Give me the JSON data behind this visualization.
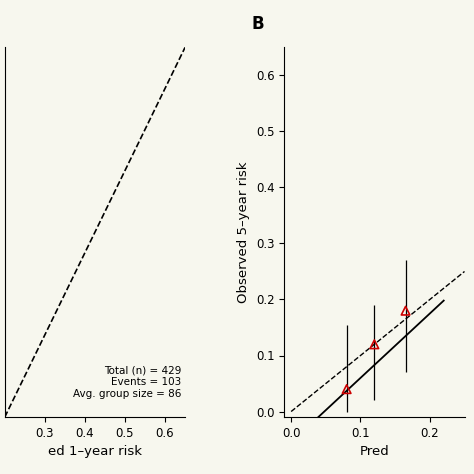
{
  "panel_A": {
    "xlim": [
      0.2,
      0.65
    ],
    "ylim": [
      0.2,
      0.65
    ],
    "xticks": [
      0.3,
      0.4,
      0.5,
      0.6
    ],
    "xlabel": "ed 1–year risk",
    "total_n": 429,
    "events": 103,
    "avg_group_size": 86
  },
  "panel_B": {
    "label": "B",
    "xlim": [
      -0.01,
      0.25
    ],
    "ylim": [
      -0.01,
      0.65
    ],
    "xticks": [
      0.0,
      0.1,
      0.2
    ],
    "yticks": [
      0.0,
      0.1,
      0.2,
      0.3,
      0.4,
      0.5,
      0.6
    ],
    "xlabel": "Pred",
    "ylabel": "Observed 5–year risk",
    "points_x": [
      0.08,
      0.12,
      0.165
    ],
    "points_y": [
      0.04,
      0.12,
      0.18
    ],
    "error_low": [
      0.0,
      0.02,
      0.07
    ],
    "error_high": [
      0.155,
      0.19,
      0.27
    ],
    "fit_slope": 1.15,
    "fit_intercept": -0.055,
    "fit_x_start": 0.0,
    "fit_x_end": 0.22,
    "point_color": "#cc0000"
  },
  "background_color": "#f7f7ee",
  "tick_fontsize": 8.5,
  "label_fontsize": 9.5,
  "bold_label_fontsize": 12
}
